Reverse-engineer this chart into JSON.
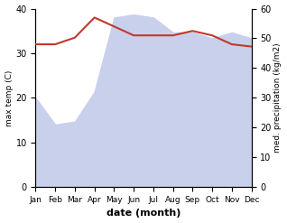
{
  "months": [
    "Jan",
    "Feb",
    "Mar",
    "Apr",
    "May",
    "Jun",
    "Jul",
    "Aug",
    "Sep",
    "Oct",
    "Nov",
    "Dec"
  ],
  "temp": [
    32,
    32,
    33.5,
    38,
    36,
    34,
    34,
    34,
    35,
    34,
    32,
    31.5
  ],
  "precip": [
    30,
    21,
    22,
    32,
    57,
    58,
    57,
    52,
    52,
    50,
    52,
    50
  ],
  "temp_color": "#c0392b",
  "precip_fill_color": "#c8d0ec",
  "temp_ylim": [
    0,
    40
  ],
  "precip_ylim": [
    0,
    60
  ],
  "temp_yticks": [
    0,
    10,
    20,
    30,
    40
  ],
  "precip_yticks": [
    0,
    10,
    20,
    30,
    40,
    50,
    60
  ],
  "xlabel": "date (month)",
  "ylabel_left": "max temp (C)",
  "ylabel_right": "med. precipitation (kg/m2)"
}
